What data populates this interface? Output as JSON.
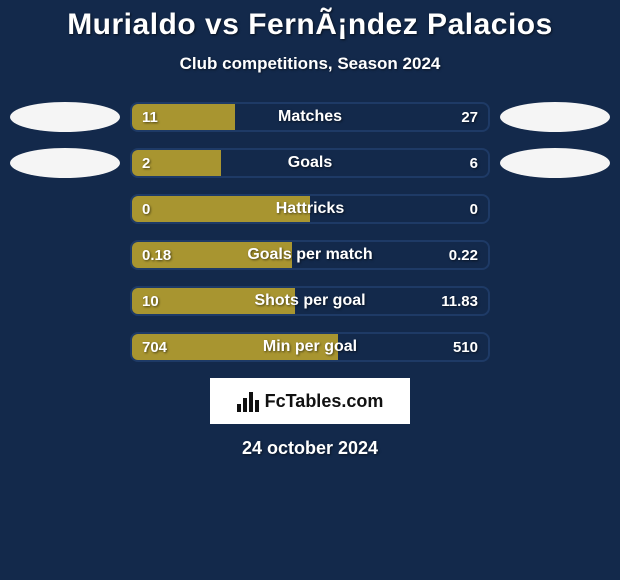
{
  "background_color": "#13294b",
  "text_color": "#ffffff",
  "title": "Murialdo vs FernÃ¡ndez Palacios",
  "title_fontsize": 30,
  "subtitle": "Club competitions, Season 2024",
  "subtitle_fontsize": 17,
  "date": "24 october 2024",
  "date_fontsize": 18,
  "avatar_bg": "#f5f5f5",
  "bar": {
    "border_color": "#1e3a66",
    "left_color": "#a89530",
    "right_color": "#13294b",
    "label_fontsize": 16,
    "value_fontsize": 15,
    "height": 30,
    "radius": 8
  },
  "rows": [
    {
      "label": "Matches",
      "left_val": "11",
      "right_val": "27",
      "left_pct": 28.9,
      "show_avatars": true
    },
    {
      "label": "Goals",
      "left_val": "2",
      "right_val": "6",
      "left_pct": 25.0,
      "show_avatars": true
    },
    {
      "label": "Hattricks",
      "left_val": "0",
      "right_val": "0",
      "left_pct": 50.0,
      "show_avatars": false
    },
    {
      "label": "Goals per match",
      "left_val": "0.18",
      "right_val": "0.22",
      "left_pct": 45.0,
      "show_avatars": false
    },
    {
      "label": "Shots per goal",
      "left_val": "10",
      "right_val": "11.83",
      "left_pct": 45.8,
      "show_avatars": false
    },
    {
      "label": "Min per goal",
      "left_val": "704",
      "right_val": "510",
      "left_pct": 58.0,
      "show_avatars": false
    }
  ],
  "logo_text": "FcTables.com"
}
